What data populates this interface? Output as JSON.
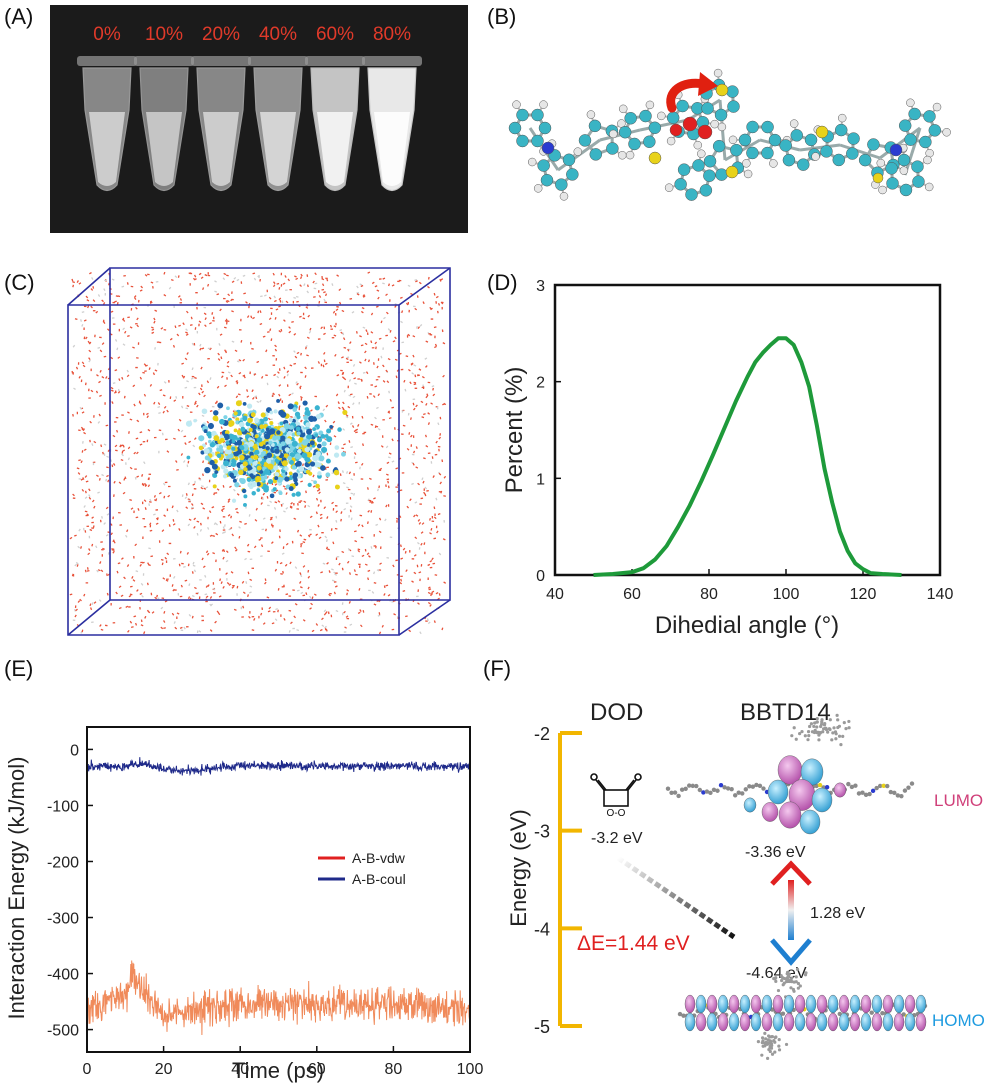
{
  "panels": {
    "A": {
      "letter": "(A)",
      "tube_labels": [
        "0%",
        "10%",
        "20%",
        "40%",
        "60%",
        "80%"
      ],
      "tube_brightness": [
        0.55,
        0.5,
        0.55,
        0.6,
        0.85,
        1.0
      ],
      "label_color": "#e03a2a"
    },
    "B": {
      "letter": "(B)"
    },
    "C": {
      "letter": "(C)"
    },
    "D": {
      "letter": "(D)"
    },
    "E": {
      "letter": "(E)"
    },
    "F": {
      "letter": "(F)",
      "dod_title": "DOD",
      "bbtd_title": "BBTD14",
      "lumo_label": "LUMO",
      "homo_label": "HOMO",
      "dod_energy_label": "-3.2 eV",
      "lumo_energy_label": "-3.36 eV",
      "homo_energy_label": "-4.64 eV",
      "gap_label": "1.28 eV",
      "delta_label": "ΔE=1.44 eV",
      "dod_atom_labels": [
        "O",
        "O",
        "O-O"
      ],
      "colors": {
        "axis": "#f2b600",
        "lumo": "#d0407a",
        "homo": "#1e9be0",
        "delta": "#e02020",
        "arrow_up": "#e02020",
        "arrow_down": "#1e7fd0"
      }
    }
  },
  "chart_data": [
    {
      "panel": "D",
      "type": "line",
      "xlabel": "Dihedial angle (°)",
      "ylabel": "Percent (%)",
      "xlim": [
        40,
        140
      ],
      "ylim": [
        0,
        3
      ],
      "xticks": [
        40,
        60,
        80,
        100,
        120,
        140
      ],
      "yticks": [
        0,
        1,
        2,
        3
      ],
      "series": [
        {
          "color": "#1e9a3a",
          "x": [
            50,
            55,
            60,
            63,
            66,
            69,
            72,
            75,
            78,
            81,
            84,
            87,
            90,
            92,
            94,
            96,
            98,
            100,
            102,
            104,
            106,
            108,
            110,
            112,
            114,
            116,
            118,
            120,
            122,
            125,
            130
          ],
          "y": [
            0.0,
            0.01,
            0.03,
            0.07,
            0.16,
            0.3,
            0.5,
            0.72,
            0.97,
            1.24,
            1.52,
            1.8,
            2.05,
            2.2,
            2.3,
            2.38,
            2.45,
            2.45,
            2.38,
            2.2,
            1.95,
            1.55,
            1.1,
            0.75,
            0.45,
            0.25,
            0.12,
            0.06,
            0.02,
            0.01,
            0.0
          ]
        }
      ]
    },
    {
      "panel": "E",
      "type": "line",
      "xlabel": "Time (ps)",
      "ylabel": "Interaction Energy (kJ/mol)",
      "xlim": [
        0,
        100
      ],
      "ylim": [
        -540,
        40
      ],
      "xticks": [
        0,
        20,
        40,
        60,
        80,
        100
      ],
      "yticks": [
        0,
        -100,
        -200,
        -300,
        -400,
        -500
      ],
      "legend": "right",
      "series": [
        {
          "name": "A-B-vdw",
          "color": "#f08a5a",
          "legend_color": "#e02020",
          "mean": -455,
          "noise": 32,
          "x": [
            0,
            10,
            12,
            14,
            20,
            40,
            60,
            80,
            100
          ],
          "y": [
            -460,
            -440,
            -400,
            -430,
            -470,
            -455,
            -455,
            -455,
            -460
          ]
        },
        {
          "name": "A-B-coul",
          "color": "#1f2a8a",
          "legend_color": "#1f2a8a",
          "mean": -30,
          "noise": 8,
          "x": [
            0,
            10,
            15,
            20,
            25,
            40,
            60,
            80,
            100
          ],
          "y": [
            -30,
            -30,
            -25,
            -35,
            -40,
            -28,
            -30,
            -30,
            -30
          ]
        }
      ]
    },
    {
      "panel": "F",
      "type": "scatter",
      "ylabel": "Energy (eV)",
      "ylim": [
        -5,
        -2
      ],
      "yticks": [
        -2,
        -3,
        -4,
        -5
      ],
      "points": [
        {
          "label": "DOD",
          "y": -3.2
        },
        {
          "label": "LUMO",
          "y": -3.36
        },
        {
          "label": "HOMO",
          "y": -4.64
        }
      ]
    }
  ]
}
